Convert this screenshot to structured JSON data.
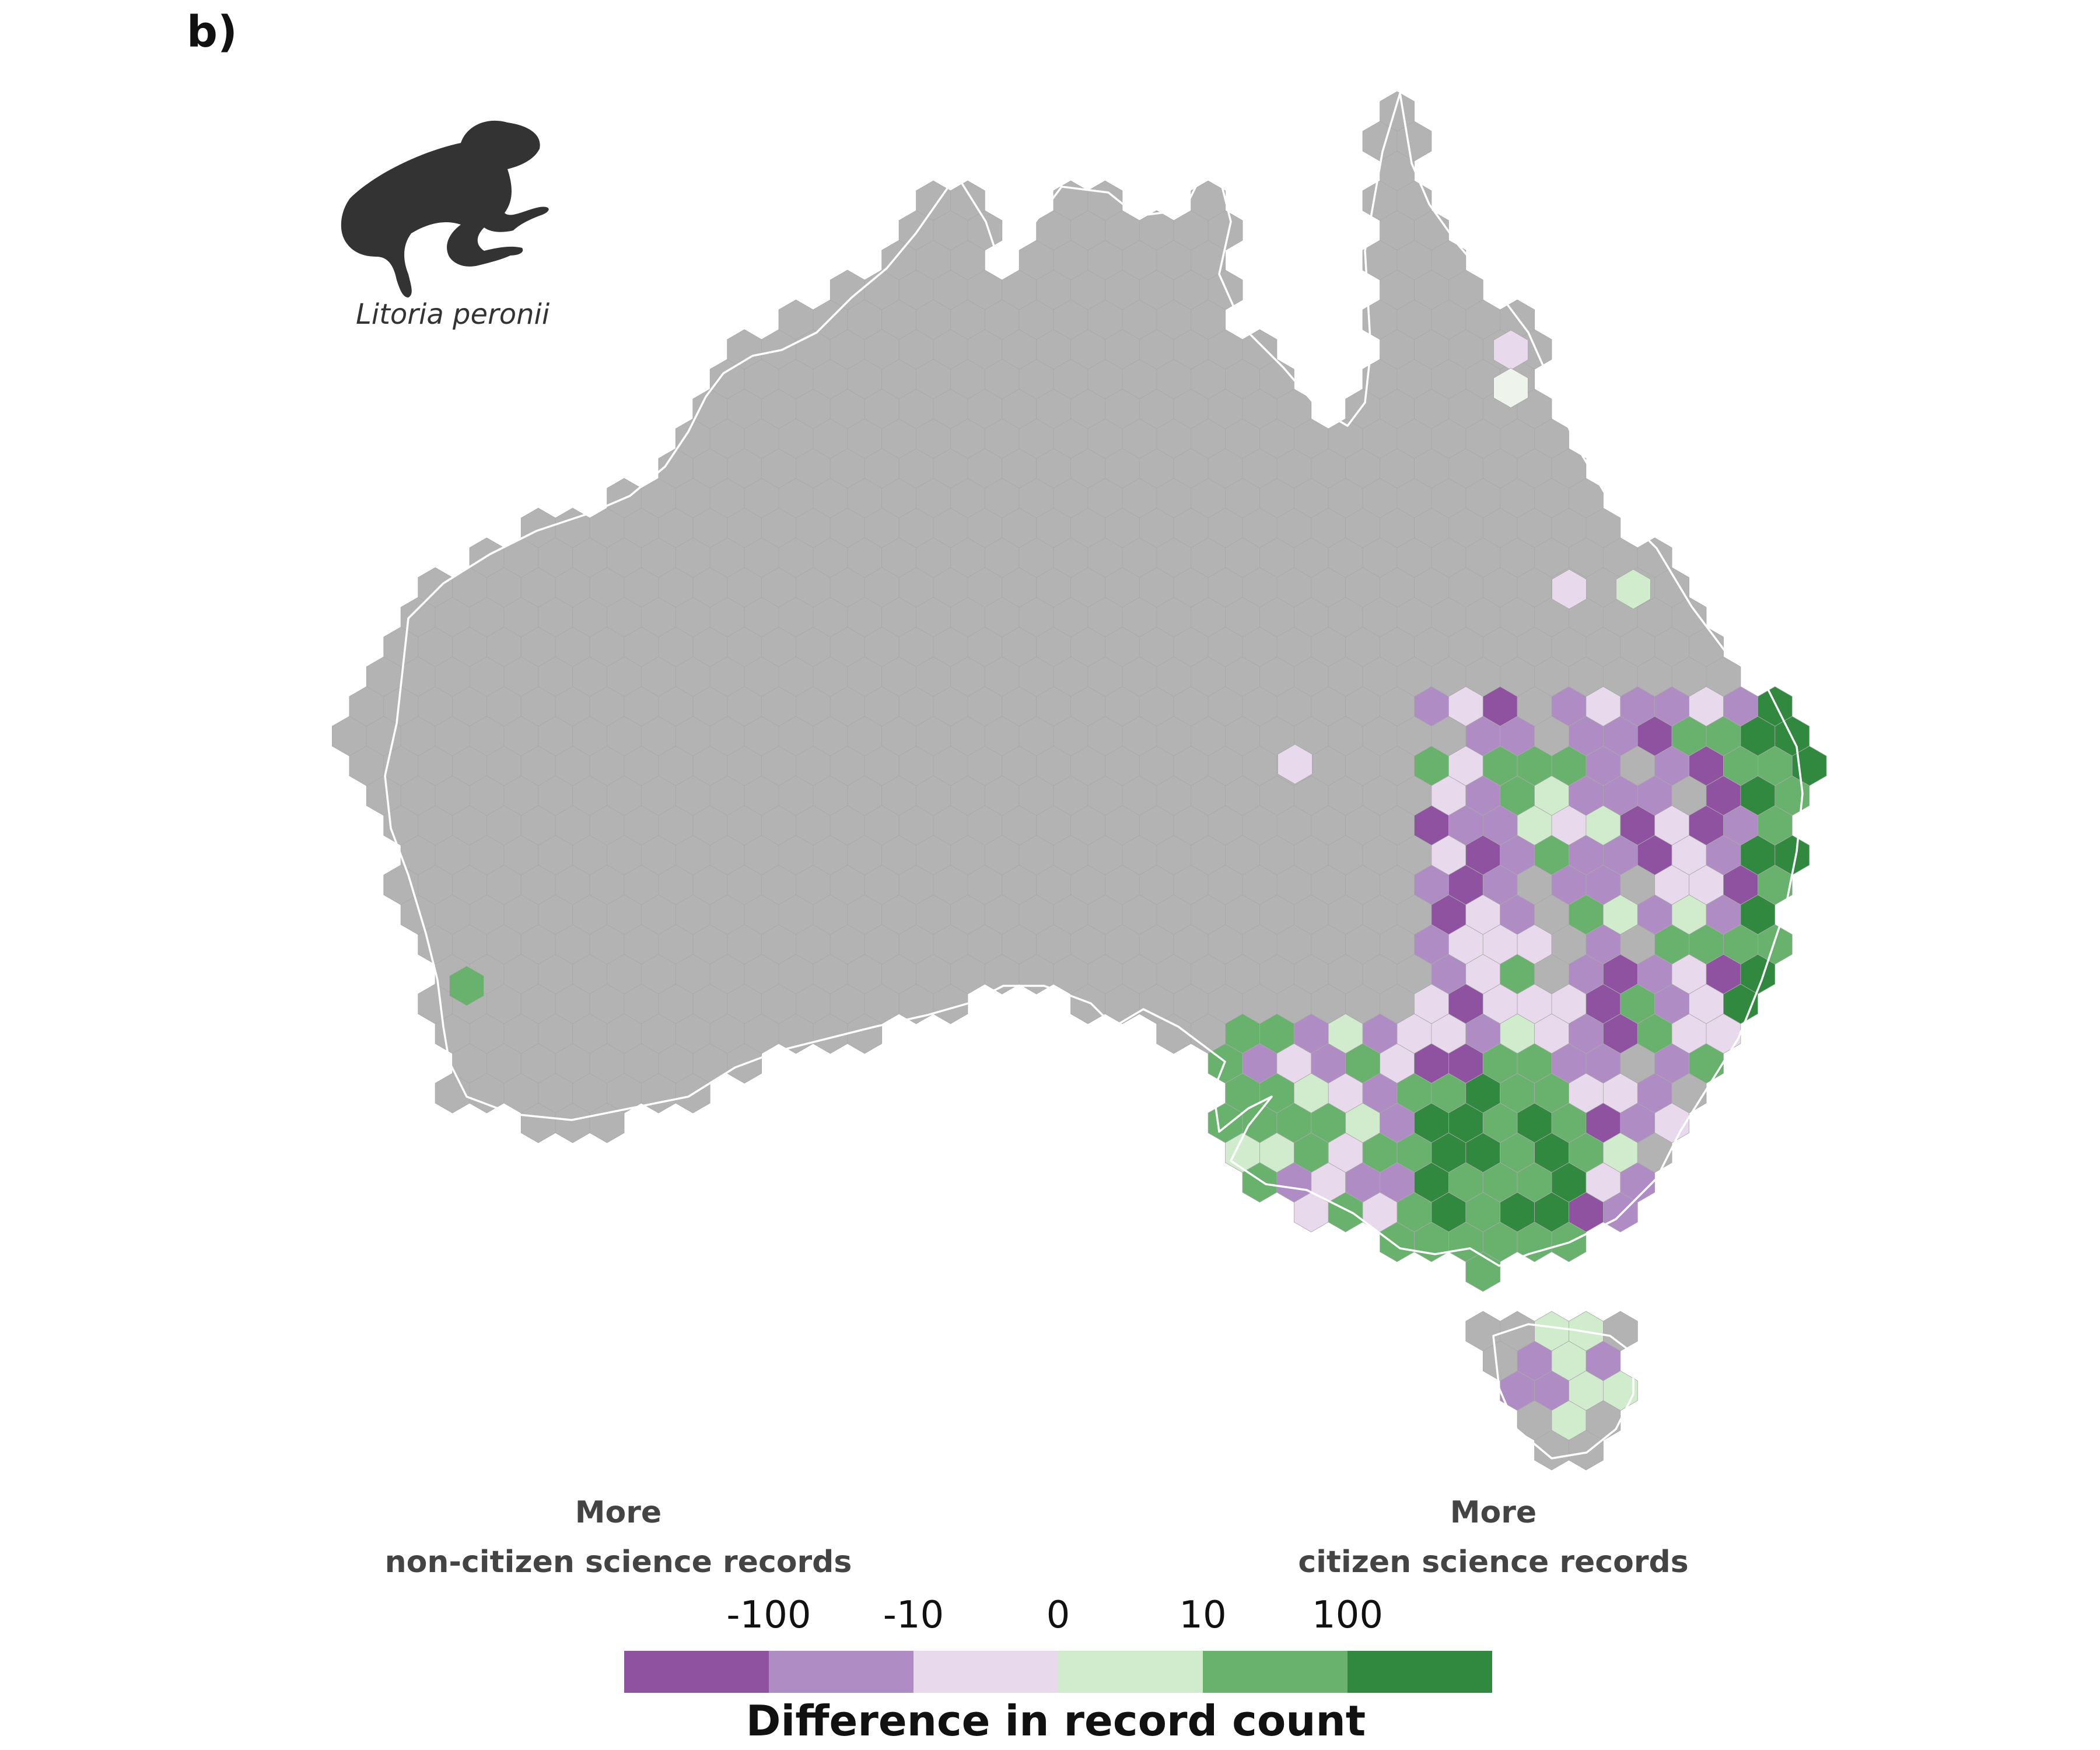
{
  "panel_label": "b)",
  "species": {
    "name": "Litoria peronii",
    "icon": "frog-silhouette-icon"
  },
  "colors": {
    "no_data": "#b3b3b3",
    "coast": "#ffffff",
    "scale": [
      "#8e52a0",
      "#b08cc5",
      "#e9d9ec",
      "#d1eccd",
      "#69b26d",
      "#31893f"
    ]
  },
  "legend": {
    "left_label_line1": "More",
    "left_label_line2": "non-citizen science records",
    "right_label_line1": "More",
    "right_label_line2": "citizen science records",
    "ticks": [
      "-100",
      "-10",
      "0",
      "10",
      "100"
    ],
    "title": "Difference in record count"
  }
}
